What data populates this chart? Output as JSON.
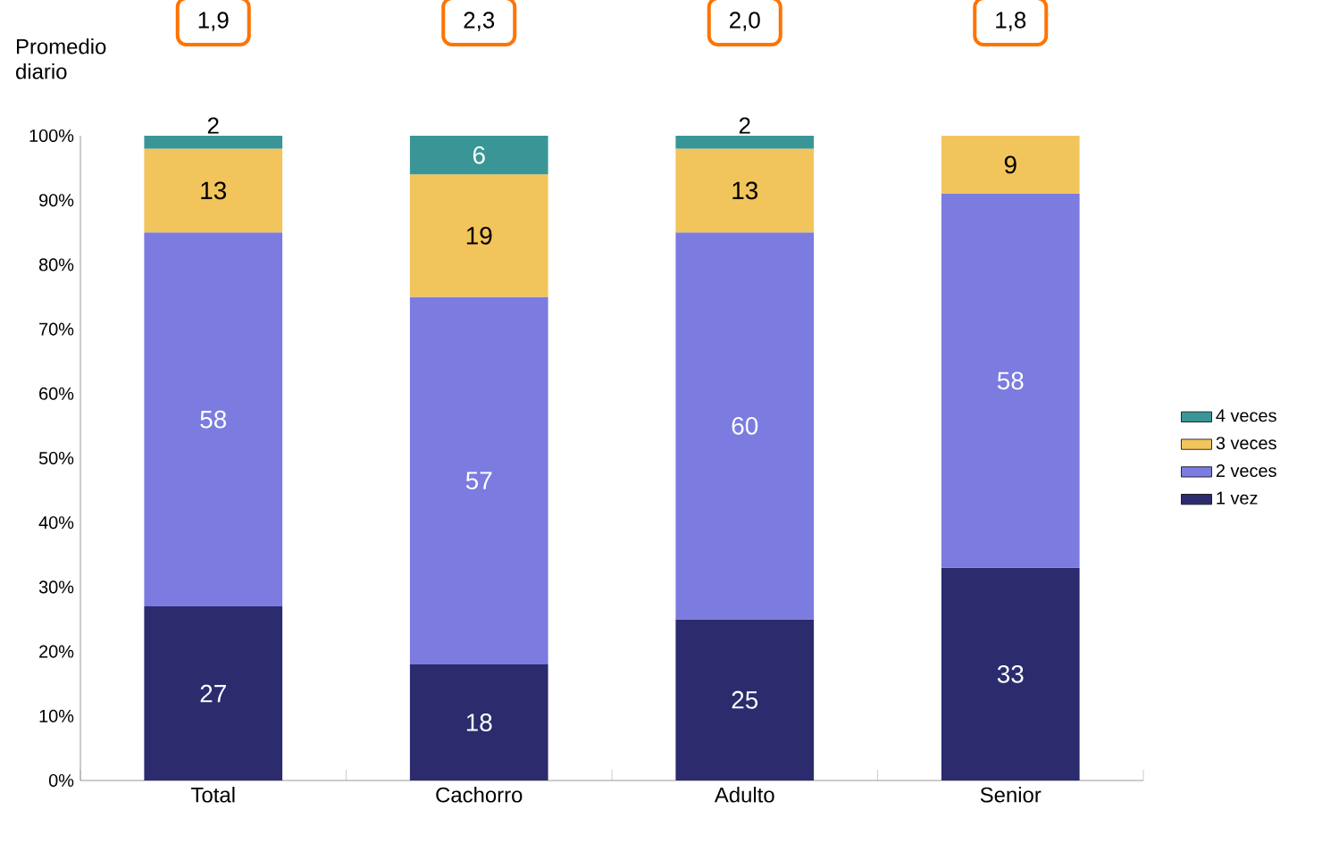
{
  "chart_data": {
    "type": "bar",
    "stacked": true,
    "categories": [
      "Total",
      "Cachorro",
      "Adulto",
      "Senior"
    ],
    "series": [
      {
        "name": "1 vez",
        "color": "#2b2b6e",
        "values": [
          27,
          18,
          25,
          33
        ]
      },
      {
        "name": "2 veces",
        "color": "#7b7be0",
        "values": [
          58,
          57,
          60,
          58
        ]
      },
      {
        "name": "3 veces",
        "color": "#f2c55c",
        "values": [
          13,
          19,
          13,
          9
        ]
      },
      {
        "name": "4 veces",
        "color": "#3a9696",
        "values": [
          2,
          6,
          2,
          null
        ]
      }
    ],
    "ylim": [
      0,
      100
    ],
    "yticks": [
      {
        "value": 0,
        "label": "0%"
      },
      {
        "value": 10,
        "label": "10%"
      },
      {
        "value": 20,
        "label": "20%"
      },
      {
        "value": 30,
        "label": "30%"
      },
      {
        "value": 40,
        "label": "40%"
      },
      {
        "value": 50,
        "label": "50%"
      },
      {
        "value": 60,
        "label": "60%"
      },
      {
        "value": 70,
        "label": "70%"
      },
      {
        "value": 80,
        "label": "80%"
      },
      {
        "value": 90,
        "label": "90%"
      },
      {
        "value": 100,
        "label": "100%"
      }
    ],
    "data_labels": true,
    "legend": "right",
    "grid": false,
    "annotations": [
      "Promedio diario",
      "1,9",
      "2,3",
      "2,0",
      "1,8"
    ]
  }
}
